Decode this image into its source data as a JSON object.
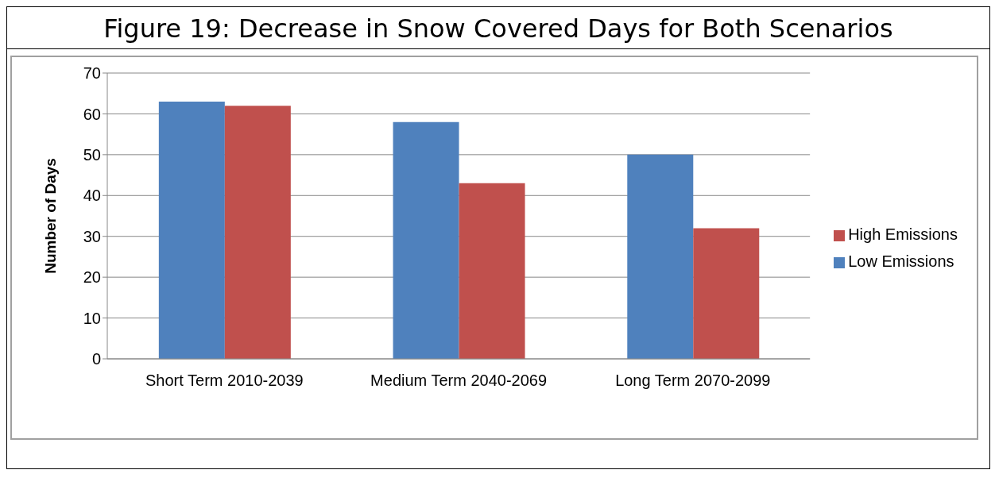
{
  "chart_data": {
    "type": "bar",
    "title": "Figure 19:  Decrease in Snow Covered Days for Both Scenarios",
    "ylabel": "Number of Days",
    "categories": [
      "Short Term 2010-2039",
      "Medium Term 2040-2069",
      "Long Term 2070-2099"
    ],
    "series": [
      {
        "name": "Low Emissions",
        "color": "#4f81bd",
        "values": [
          63,
          58,
          50
        ]
      },
      {
        "name": "High Emissions",
        "color": "#c0504d",
        "values": [
          62,
          43,
          32
        ]
      }
    ],
    "ylim": [
      0,
      70
    ],
    "yticks": [
      0,
      10,
      20,
      30,
      40,
      50,
      60,
      70
    ],
    "grid": "y",
    "legend": "right"
  }
}
